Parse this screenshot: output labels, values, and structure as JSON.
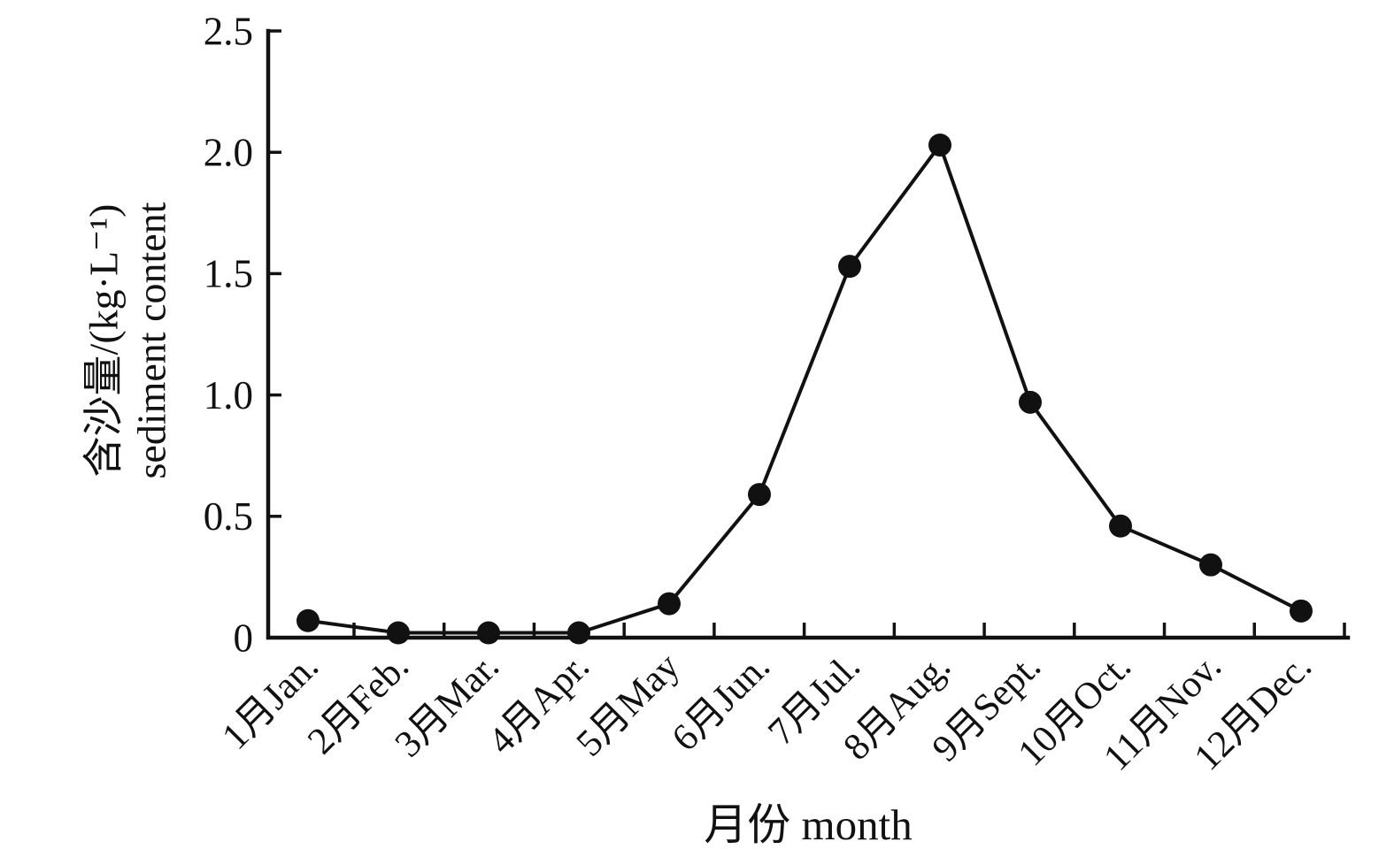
{
  "figure": {
    "background_color": "#ffffff",
    "ink_color": "#111111"
  },
  "chart_data": {
    "type": "line",
    "categories": [
      "1月Jan.",
      "2月Feb.",
      "3月Mar.",
      "4月Apr.",
      "5月May",
      "6月Jun.",
      "7月Jul.",
      "8月Aug.",
      "9月Sept.",
      "10月Oct.",
      "11月Nov.",
      "12月Dec."
    ],
    "values": [
      0.07,
      0.02,
      0.02,
      0.02,
      0.14,
      0.59,
      1.53,
      2.03,
      0.97,
      0.46,
      0.3,
      0.11
    ],
    "series_name": "sediment content",
    "title": "",
    "xlabel": "月份 month",
    "ylabel_cn": "含沙量/(kg·L⁻¹)",
    "ylabel_en": "sediment content",
    "ylim": [
      0,
      2.5
    ],
    "y_ticks": [
      0,
      0.5,
      1.0,
      1.5,
      2.0,
      2.5
    ],
    "y_tick_labels": [
      "0",
      "0.5",
      "1.0",
      "1.5",
      "2.0",
      "2.5"
    ],
    "grid": false,
    "legend_position": "none",
    "line_color": "#111111",
    "marker": "filled-circle",
    "x_tick_style": "slot-boundaries-inward",
    "x_label_rotation_deg": -45
  }
}
